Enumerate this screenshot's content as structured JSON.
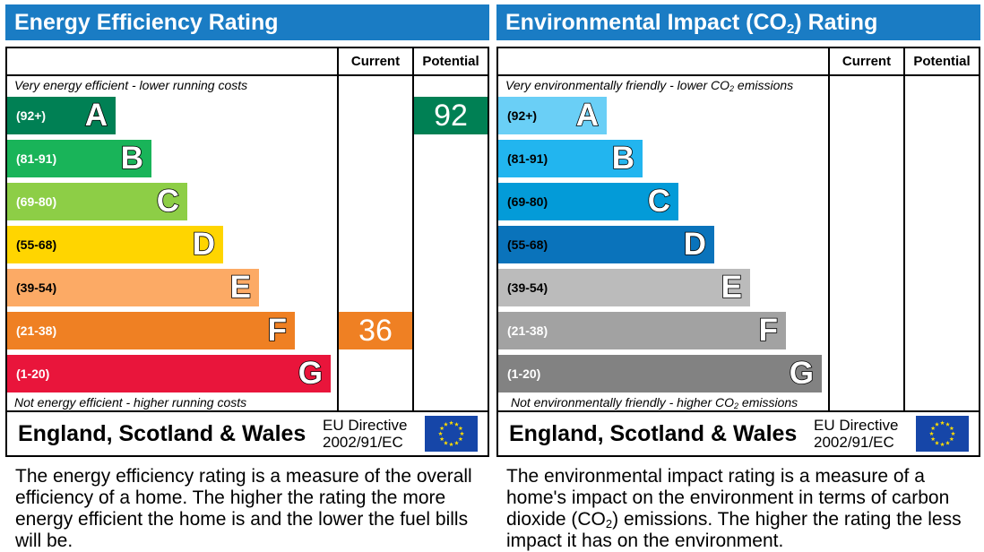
{
  "energy": {
    "title": "Energy Efficiency Rating",
    "col_current": "Current",
    "col_potential": "Potential",
    "top_caption": "Very energy efficient - lower running costs",
    "bottom_caption": "Not energy efficient - higher running costs",
    "bands": [
      {
        "range": "(92+)",
        "letter": "A",
        "color": "#008054"
      },
      {
        "range": "(81-91)",
        "letter": "B",
        "color": "#19b459"
      },
      {
        "range": "(69-80)",
        "letter": "C",
        "color": "#8dce46"
      },
      {
        "range": "(55-68)",
        "letter": "D",
        "color": "#ffd500"
      },
      {
        "range": "(39-54)",
        "letter": "E",
        "color": "#fcaa65"
      },
      {
        "range": "(21-38)",
        "letter": "F",
        "color": "#ef8023"
      },
      {
        "range": "(1-20)",
        "letter": "G",
        "color": "#e9153b"
      }
    ],
    "current": {
      "value": "36",
      "band": "F",
      "color": "#ef8023"
    },
    "potential": {
      "value": "92",
      "band": "A",
      "color": "#008054"
    },
    "region": "England, Scotland & Wales",
    "directive_line1": "EU Directive",
    "directive_line2": "2002/91/EC",
    "description": "The energy efficiency rating is a measure of the overall efficiency of a home. The higher the rating the more energy efficient the home is and the lower the fuel bills will be."
  },
  "environment": {
    "title_pre": "Environmental Impact (CO",
    "title_sub": "2",
    "title_post": ") Rating",
    "col_current": "Current",
    "col_potential": "Potential",
    "top_caption_pre": "Very environmentally friendly - lower CO",
    "top_caption_sub": "2",
    "top_caption_post": " emissions",
    "bottom_caption_pre": "Not environmentally friendly - higher CO",
    "bottom_caption_sub": "2",
    "bottom_caption_post": " emissions",
    "bands": [
      {
        "range": "(92+)",
        "letter": "A",
        "color": "#6acff6"
      },
      {
        "range": "(81-91)",
        "letter": "B",
        "color": "#22b5ef"
      },
      {
        "range": "(69-80)",
        "letter": "C",
        "color": "#039bd8"
      },
      {
        "range": "(55-68)",
        "letter": "D",
        "color": "#0a73bb"
      },
      {
        "range": "(39-54)",
        "letter": "E",
        "color": "#bbbbbb"
      },
      {
        "range": "(21-38)",
        "letter": "F",
        "color": "#a2a2a2"
      },
      {
        "range": "(1-20)",
        "letter": "G",
        "color": "#828282"
      }
    ],
    "region": "England, Scotland & Wales",
    "directive_line1": "EU Directive",
    "directive_line2": "2002/91/EC",
    "description_pre": "The environmental impact rating is a measure of a home's impact on the environment in terms of carbon dioxide (CO",
    "description_sub": "2",
    "description_post": ") emissions. The higher the rating the less impact it has on the environment."
  },
  "icons": {
    "eu_flag": "eu-flag-icon"
  },
  "colors": {
    "title_bar": "#1a7cc4",
    "eu_blue": "#1646a8",
    "eu_star": "#ffdd00"
  }
}
